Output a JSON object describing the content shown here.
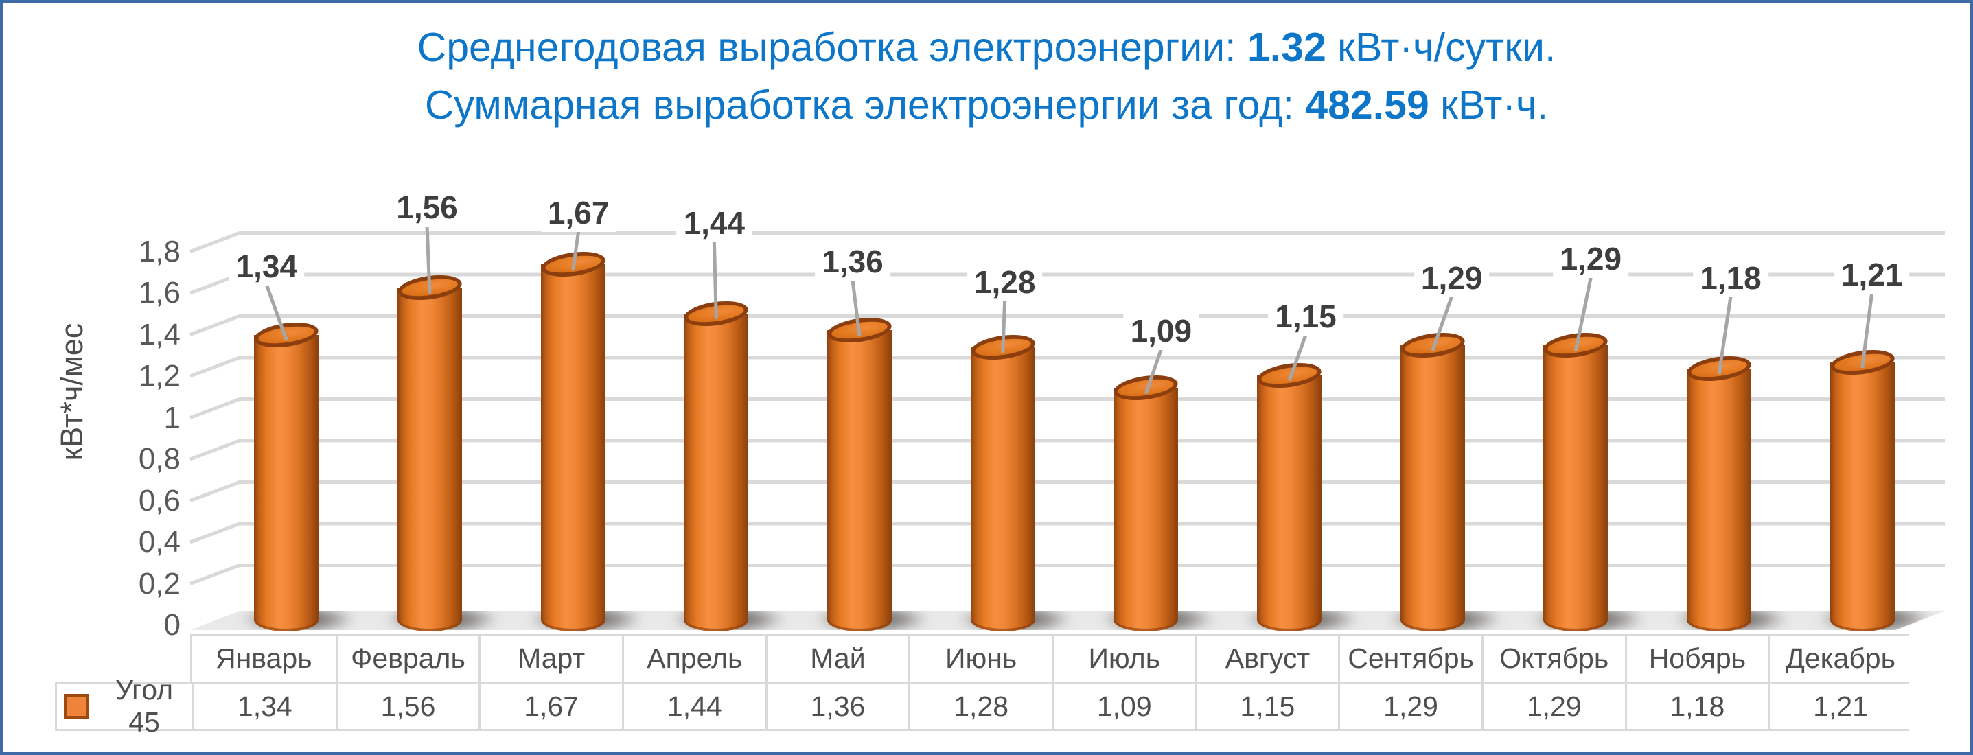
{
  "frame": {
    "border_color": "#3E6BA5",
    "background": "#FFFFFF"
  },
  "title": {
    "color": "#0E76C8",
    "line1_prefix": "Среднегодовая выработка электроэнергии: ",
    "line1_value": "1.32",
    "line1_suffix": " кВт·ч/сутки.",
    "line2_prefix": "Суммарная выработка электроэнергии за год: ",
    "line2_value": "482.59",
    "line2_suffix": " кВт·ч."
  },
  "chart_data": {
    "type": "bar",
    "subtype": "cylinder-3d",
    "title": "",
    "categories": [
      "Январь",
      "Февраль",
      "Март",
      "Апрель",
      "Май",
      "Июнь",
      "Июль",
      "Август",
      "Сентябрь",
      "Октябрь",
      "Нобярь",
      "Декабрь"
    ],
    "series": [
      {
        "name": "Угол 45",
        "values": [
          1.34,
          1.56,
          1.67,
          1.44,
          1.36,
          1.28,
          1.09,
          1.15,
          1.29,
          1.29,
          1.18,
          1.21
        ],
        "labels_display": [
          "1,34",
          "1,56",
          "1,67",
          "1,44",
          "1,36",
          "1,28",
          "1,09",
          "1,15",
          "1,29",
          "1,29",
          "1,18",
          "1,21"
        ]
      }
    ],
    "xlabel": "",
    "ylabel": "кВт*ч/мес",
    "y_ticks_display": [
      "0",
      "0,2",
      "0,4",
      "0,6",
      "0,8",
      "1",
      "1,2",
      "1,4",
      "1,6",
      "1,8"
    ],
    "ylim": [
      0,
      1.8
    ],
    "grid": true,
    "legend_position": "bottom-table",
    "colors": {
      "bar": "#ED7D31",
      "bar_edge": "#8C3E0E",
      "gridline": "#D9D9D9",
      "leader_line": "#A6A6A6",
      "tick_text": "#595959",
      "label_text": "#3E3E3E",
      "table_border": "#D9D9D9",
      "table_text": "#4F4F4F"
    }
  }
}
